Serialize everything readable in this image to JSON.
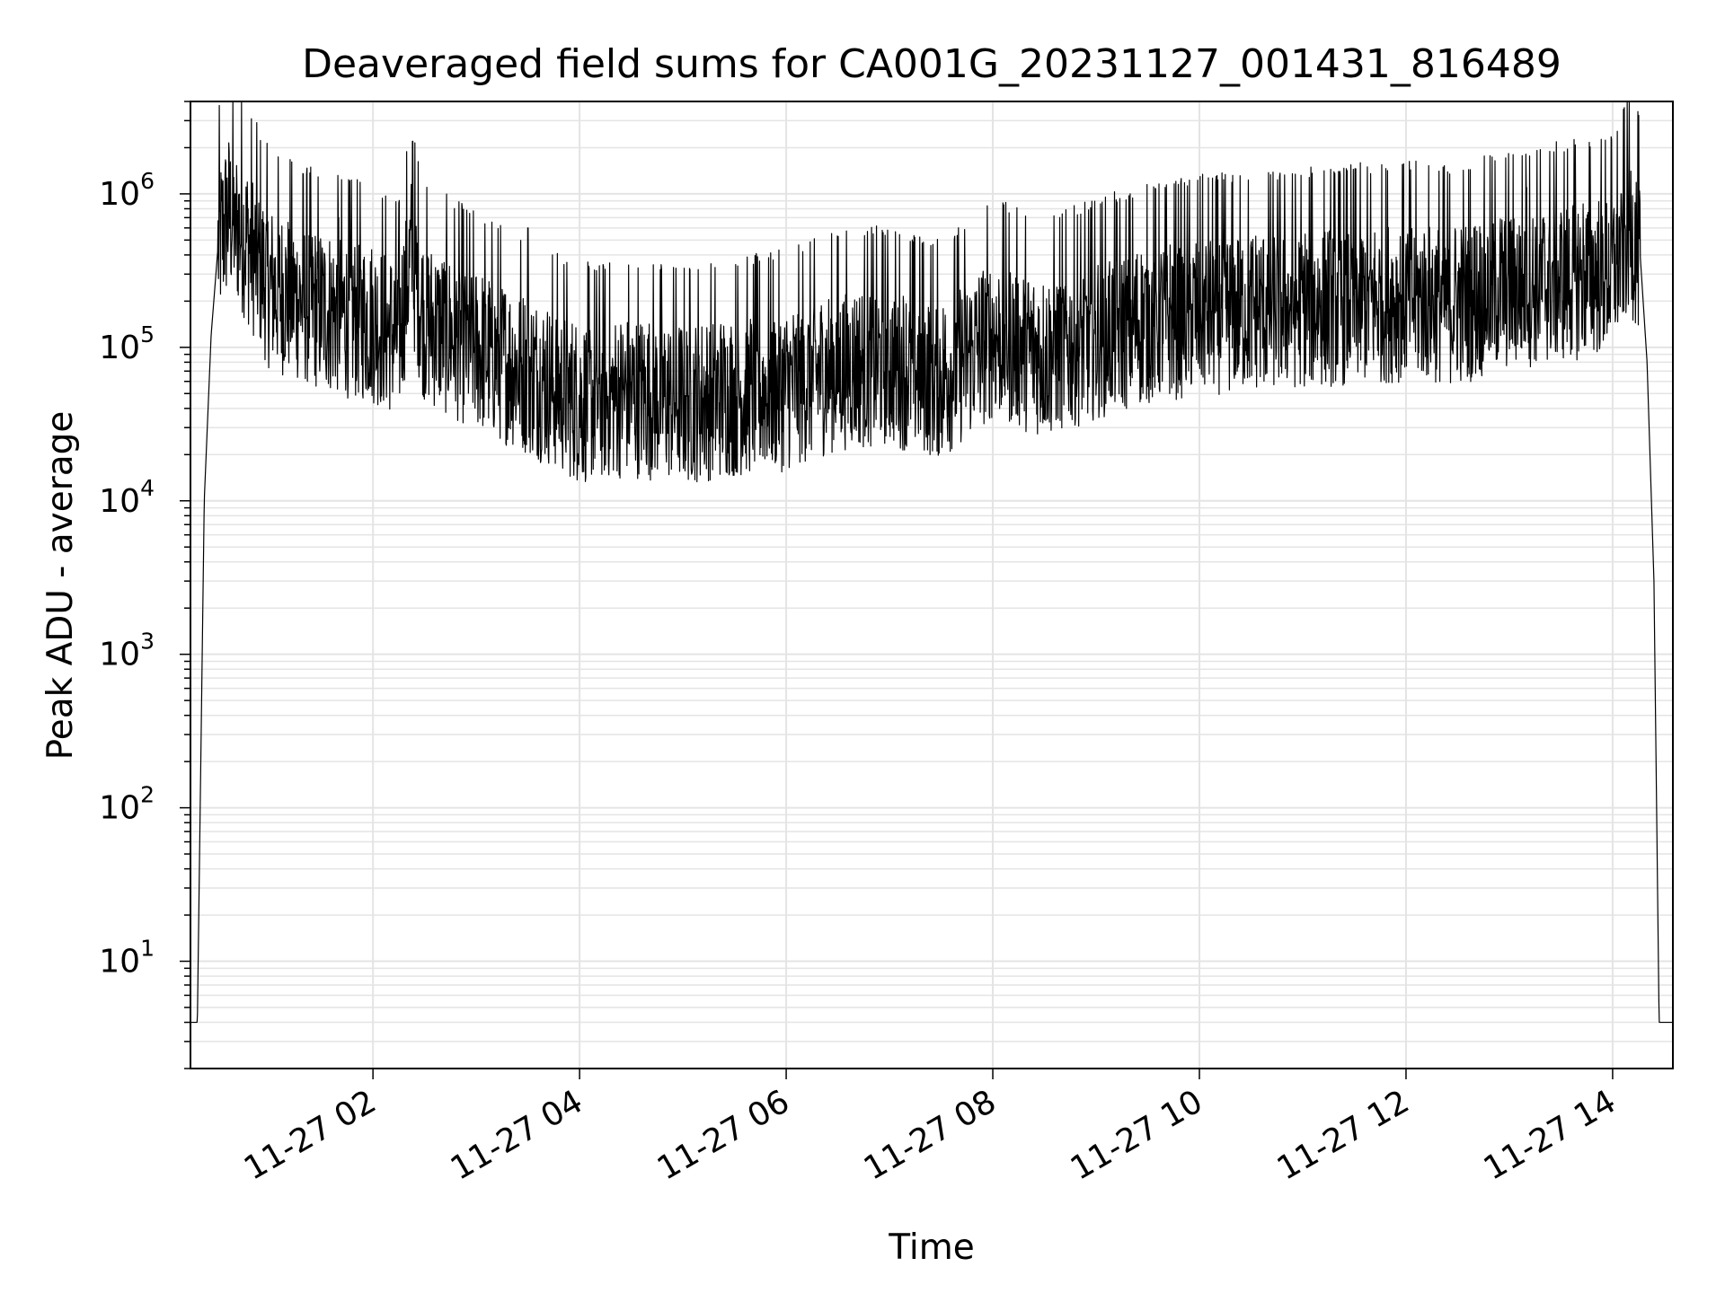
{
  "chart_data": {
    "type": "line",
    "title": "Deaveraged field sums for CA001G_20231127_001431_816489",
    "xlabel": "Time",
    "ylabel": "Peak ADU - average",
    "yscale": "log",
    "ylim": [
      2,
      4000000
    ],
    "xlim": [
      "2023-11-27 00:14",
      "2023-11-27 14:35"
    ],
    "grid": true,
    "line_color": "#000000",
    "grid_color": "#e4e4e4",
    "x_ticks": [
      {
        "value": "2023-11-27 02:00",
        "label": "11-27 02"
      },
      {
        "value": "2023-11-27 04:00",
        "label": "11-27 04"
      },
      {
        "value": "2023-11-27 06:00",
        "label": "11-27 06"
      },
      {
        "value": "2023-11-27 08:00",
        "label": "11-27 08"
      },
      {
        "value": "2023-11-27 10:00",
        "label": "11-27 10"
      },
      {
        "value": "2023-11-27 12:00",
        "label": "11-27 12"
      },
      {
        "value": "2023-11-27 14:00",
        "label": "11-27 14"
      }
    ],
    "y_ticks": [
      {
        "value": 10,
        "base": "10",
        "exp": "1"
      },
      {
        "value": 100,
        "base": "10",
        "exp": "2"
      },
      {
        "value": 1000,
        "base": "10",
        "exp": "3"
      },
      {
        "value": 10000,
        "base": "10",
        "exp": "4"
      },
      {
        "value": 100000,
        "base": "10",
        "exp": "5"
      },
      {
        "value": 1000000,
        "base": "10",
        "exp": "6"
      }
    ],
    "series": [
      {
        "points": [
          [
            "2023-11-27 00:14",
            4
          ],
          [
            "2023-11-27 00:18",
            4
          ],
          [
            "2023-11-27 00:22",
            10000
          ],
          [
            "2023-11-27 00:26",
            120000
          ],
          [
            "2023-11-27 00:30",
            450000
          ],
          [
            "2023-11-27 00:36",
            750000
          ],
          [
            "2023-11-27 00:45",
            550000
          ],
          [
            "2023-11-27 01:00",
            250000
          ],
          [
            "2023-11-27 01:30",
            180000
          ],
          [
            "2023-11-27 02:00",
            150000
          ],
          [
            "2023-11-27 02:15",
            120000
          ],
          [
            "2023-11-27 02:22",
            400000
          ],
          [
            "2023-11-27 02:30",
            150000
          ],
          [
            "2023-11-27 03:00",
            100000
          ],
          [
            "2023-11-27 03:30",
            70000
          ],
          [
            "2023-11-27 04:00",
            45000
          ],
          [
            "2023-11-27 04:30",
            50000
          ],
          [
            "2023-11-27 05:00",
            45000
          ],
          [
            "2023-11-27 05:30",
            50000
          ],
          [
            "2023-11-27 06:00",
            55000
          ],
          [
            "2023-11-27 06:30",
            75000
          ],
          [
            "2023-11-27 07:00",
            80000
          ],
          [
            "2023-11-27 07:30",
            65000
          ],
          [
            "2023-11-27 08:00",
            120000
          ],
          [
            "2023-11-27 08:30",
            90000
          ],
          [
            "2023-11-27 09:00",
            120000
          ],
          [
            "2023-11-27 09:30",
            150000
          ],
          [
            "2023-11-27 10:00",
            170000
          ],
          [
            "2023-11-27 10:30",
            180000
          ],
          [
            "2023-11-27 11:00",
            190000
          ],
          [
            "2023-11-27 11:30",
            200000
          ],
          [
            "2023-11-27 12:00",
            210000
          ],
          [
            "2023-11-27 12:30",
            200000
          ],
          [
            "2023-11-27 13:00",
            250000
          ],
          [
            "2023-11-27 13:30",
            280000
          ],
          [
            "2023-11-27 14:00",
            320000
          ],
          [
            "2023-11-27 14:10",
            600000
          ],
          [
            "2023-11-27 14:16",
            400000
          ],
          [
            "2023-11-27 14:20",
            80000
          ],
          [
            "2023-11-27 14:24",
            3000
          ],
          [
            "2023-11-27 14:27",
            4
          ],
          [
            "2023-11-27 14:35",
            4
          ]
        ],
        "spikes": [
          [
            "2023-11-27 02:23",
            2200000
          ],
          [
            "2023-11-27 00:40",
            1000000
          ],
          [
            "2023-11-27 13:10",
            1100000
          ],
          [
            "2023-11-27 14:05",
            1000000
          ],
          [
            "2023-11-27 01:40",
            700000
          ],
          [
            "2023-11-27 03:30",
            600000
          ]
        ]
      }
    ]
  }
}
